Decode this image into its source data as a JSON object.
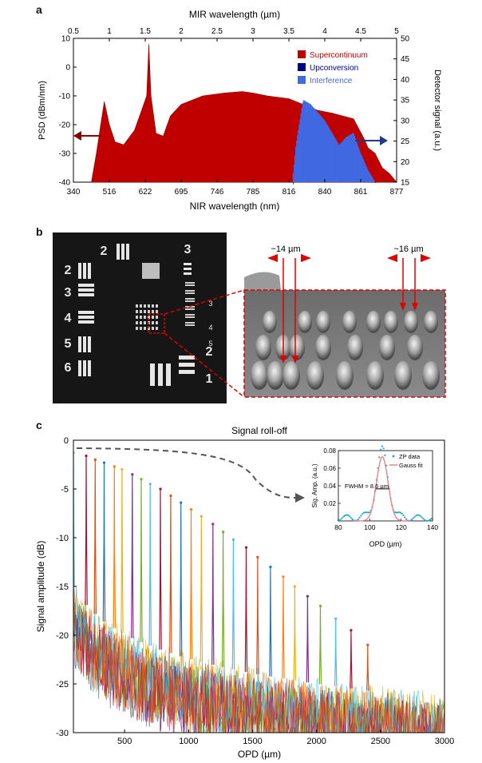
{
  "panels": {
    "a": "a",
    "b": "b",
    "c": "c"
  },
  "colors": {
    "supercontinuum": "#c00000",
    "upconversion": "#00008b",
    "interference": "#4169e1",
    "arrow_red": "#8b0000",
    "arrow_blue": "#1f3c88"
  },
  "chart_data": [
    {
      "type": "area",
      "top_axis": {
        "label": "MIR wavelength (µm)",
        "ticks": [
          "0.5",
          "1",
          "1.5",
          "2",
          "2.5",
          "3",
          "3.5",
          "4",
          "4.5",
          "5"
        ]
      },
      "xlabel": "NIR wavelength (nm)",
      "x_ticks": [
        "340",
        "516",
        "622",
        "695",
        "746",
        "785",
        "816",
        "840",
        "861",
        "877"
      ],
      "ylabel": "PSD (dBm/nm)",
      "ylim": [
        -40,
        10
      ],
      "y_ticks": [
        "10",
        "0",
        "-10",
        "-20",
        "-30",
        "-40"
      ],
      "y2label": "Detector signal (a.u.)",
      "y2lim": [
        15,
        50
      ],
      "y2_ticks": [
        "50",
        "45",
        "40",
        "35",
        "30",
        "25",
        "20",
        "15"
      ],
      "legend": {
        "position": "top-right",
        "entries": [
          "Supercontinuum",
          "Upconversion",
          "Interference"
        ]
      },
      "series": [
        {
          "name": "Supercontinuum",
          "x_um": [
            0.75,
            0.82,
            0.88,
            0.93,
            1.0,
            1.08,
            1.2,
            1.35,
            1.45,
            1.52,
            1.55,
            1.58,
            1.65,
            1.75,
            1.85,
            2.0,
            2.3,
            2.6,
            2.85,
            3.0,
            3.2,
            3.5,
            3.7,
            3.9,
            4.1,
            4.25,
            4.4,
            4.55,
            4.6,
            4.7,
            4.8,
            4.9,
            5.0
          ],
          "y": [
            -40,
            -30,
            -20,
            -12,
            -20,
            -26,
            -27,
            -22,
            -15,
            -10,
            8,
            -10,
            -23,
            -24,
            -17,
            -13,
            -10,
            -9,
            -8.5,
            -9,
            -10,
            -11,
            -13,
            -15,
            -16,
            -17,
            -18,
            -25,
            -28,
            -30,
            -35,
            -37,
            -40
          ]
        },
        {
          "name": "Upconversion",
          "x_um": [
            3.55,
            3.6,
            3.7,
            3.8,
            3.9,
            4.0,
            4.1,
            4.2,
            4.3,
            4.4,
            4.5,
            4.6,
            4.7
          ],
          "y": [
            15,
            24,
            35,
            34,
            32,
            30,
            27,
            24,
            26,
            27,
            22,
            18,
            15
          ]
        }
      ]
    },
    {
      "type": "line",
      "title": "Signal roll-off",
      "xlabel": "OPD (µm)",
      "ylabel": "Signal amplitude (dB)",
      "xlim": [
        100,
        3000
      ],
      "ylim": [
        -30,
        0
      ],
      "x_ticks": [
        "500",
        "1000",
        "1500",
        "2000",
        "2500",
        "3000"
      ],
      "y_ticks": [
        "0",
        "-5",
        "-10",
        "-15",
        "-20",
        "-25",
        "-30"
      ],
      "peaks": {
        "x": [
          100,
          200,
          270,
          340,
          420,
          480,
          560,
          630,
          700,
          780,
          860,
          940,
          1020,
          1100,
          1190,
          1270,
          1350,
          1450,
          1540,
          1640,
          1740,
          1830,
          1930,
          2030,
          2150,
          2270,
          2400
        ],
        "y": [
          -1.3,
          -1.6,
          -2.0,
          -2.3,
          -2.7,
          -3.0,
          -3.5,
          -4.0,
          -4.5,
          -5.0,
          -5.7,
          -6.4,
          -7.1,
          -7.8,
          -8.6,
          -9.4,
          -10.2,
          -11.0,
          -12.0,
          -13.0,
          -14.0,
          -15.0,
          -16.0,
          -17.0,
          -18.3,
          -19.5,
          -21.0
        ]
      },
      "inset": {
        "xlabel": "OPD (µm)",
        "ylabel": "Sig. Amp. (a.u.)",
        "xlim": [
          80,
          140
        ],
        "ylim": [
          0,
          0.08
        ],
        "x_ticks": [
          "80",
          "100",
          "120",
          "140"
        ],
        "y_ticks": [
          "0.08",
          "0.06",
          "0.04",
          "0.02"
        ],
        "legend": [
          "ZP data",
          "Gauss fit"
        ],
        "annotation": "FWHM = 8.6 µm",
        "peak_center": 108,
        "peak_amplitude": 0.073,
        "fwhm": 8.6
      }
    }
  ],
  "panel_b": {
    "label_14": "~14 µm",
    "label_16": "~16 µm",
    "target_numbers": [
      "2",
      "2",
      "3",
      "3",
      "4",
      "5",
      "6",
      "3",
      "4",
      "5",
      "2",
      "1"
    ]
  }
}
